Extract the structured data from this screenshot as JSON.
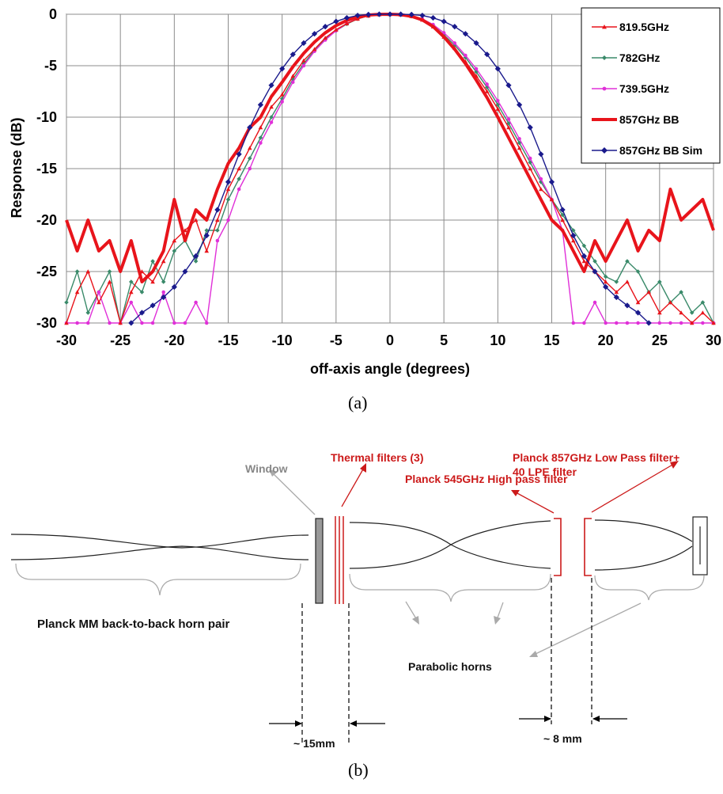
{
  "figure": {
    "caption_a": "(a)",
    "caption_b": "(b)"
  },
  "chart_data": {
    "type": "line",
    "xlabel": "off-axis angle (degrees)",
    "ylabel": "Response (dB)",
    "xlim": [
      -30,
      30
    ],
    "ylim": [
      -30,
      0
    ],
    "x_ticks": [
      -30,
      -25,
      -20,
      -15,
      -10,
      -5,
      0,
      5,
      10,
      15,
      20,
      25,
      30
    ],
    "y_ticks": [
      0,
      -5,
      -10,
      -15,
      -20,
      -25,
      -30
    ],
    "grid": true,
    "legend_position": "top-right",
    "series": [
      {
        "name": "819.5GHz",
        "color": "#e8141b",
        "marker": "triangle",
        "x": [
          -30,
          -29,
          -28,
          -27,
          -26,
          -25,
          -24,
          -23,
          -22,
          -21,
          -20,
          -19,
          -18,
          -17,
          -16,
          -15,
          -14,
          -13,
          -12,
          -11,
          -10,
          -9,
          -8,
          -7,
          -6,
          -5,
          -4,
          -3,
          -2,
          -1,
          0,
          1,
          2,
          3,
          4,
          5,
          6,
          7,
          8,
          9,
          10,
          11,
          12,
          13,
          14,
          15,
          16,
          17,
          18,
          19,
          20,
          21,
          22,
          23,
          24,
          25,
          26,
          27,
          28,
          29,
          30
        ],
        "y": [
          -30,
          -27,
          -25,
          -28,
          -26,
          -30,
          -27,
          -25,
          -26,
          -24,
          -22,
          -21,
          -20,
          -23,
          -20,
          -17,
          -15,
          -13,
          -11,
          -9,
          -7.8,
          -6,
          -4.5,
          -3.4,
          -2.3,
          -1.5,
          -0.9,
          -0.45,
          -0.15,
          -0.03,
          0,
          -0.05,
          -0.2,
          -0.55,
          -1.2,
          -2.2,
          -3.3,
          -4.6,
          -6,
          -7.5,
          -9.2,
          -11,
          -13,
          -15,
          -17,
          -18,
          -20,
          -22,
          -24,
          -25,
          -26,
          -27,
          -26,
          -28,
          -27,
          -29,
          -28,
          -29,
          -30,
          -29,
          -30
        ]
      },
      {
        "name": "782GHz",
        "color": "#3a8a6a",
        "marker": "diamond",
        "x": [
          -30,
          -29,
          -28,
          -27,
          -26,
          -25,
          -24,
          -23,
          -22,
          -21,
          -20,
          -19,
          -18,
          -17,
          -16,
          -15,
          -14,
          -13,
          -12,
          -11,
          -10,
          -9,
          -8,
          -7,
          -6,
          -5,
          -4,
          -3,
          -2,
          -1,
          0,
          1,
          2,
          3,
          4,
          5,
          6,
          7,
          8,
          9,
          10,
          11,
          12,
          13,
          14,
          15,
          16,
          17,
          18,
          19,
          20,
          21,
          22,
          23,
          24,
          25,
          26,
          27,
          28,
          29,
          30
        ],
        "y": [
          -28,
          -25,
          -29,
          -27,
          -25,
          -30,
          -26,
          -27,
          -24,
          -26,
          -23,
          -22,
          -24,
          -21,
          -21,
          -18,
          -16,
          -14,
          -12,
          -10,
          -8.2,
          -6.3,
          -4.8,
          -3.5,
          -2.4,
          -1.6,
          -0.95,
          -0.45,
          -0.15,
          -0.03,
          0,
          -0.04,
          -0.2,
          -0.5,
          -1.1,
          -2,
          -3,
          -4.2,
          -5.6,
          -7.1,
          -8.8,
          -10.6,
          -12.5,
          -14.4,
          -16.3,
          -18,
          -19.5,
          -21,
          -22.5,
          -24,
          -25.5,
          -26,
          -24,
          -25,
          -27,
          -26,
          -28,
          -27,
          -29,
          -28,
          -30
        ]
      },
      {
        "name": "739.5GHz",
        "color": "#e030d8",
        "marker": "circle",
        "x": [
          -30,
          -29,
          -28,
          -27,
          -26,
          -25,
          -24,
          -23,
          -22,
          -21,
          -20,
          -19,
          -18,
          -17,
          -16,
          -15,
          -14,
          -13,
          -12,
          -11,
          -10,
          -9,
          -8,
          -7,
          -6,
          -5,
          -4,
          -3,
          -2,
          -1,
          0,
          1,
          2,
          3,
          4,
          5,
          6,
          7,
          8,
          9,
          10,
          11,
          12,
          13,
          14,
          15,
          16,
          17,
          18,
          19,
          20,
          21,
          22,
          23,
          24,
          25,
          26,
          27,
          28,
          29,
          30
        ],
        "y": [
          -30,
          -30,
          -30,
          -27,
          -30,
          -30,
          -28,
          -30,
          -30,
          -27,
          -30,
          -30,
          -28,
          -30,
          -22,
          -20,
          -17,
          -15,
          -12.5,
          -10.5,
          -8.5,
          -6.6,
          -5,
          -3.6,
          -2.5,
          -1.6,
          -0.9,
          -0.4,
          -0.12,
          -0.02,
          0,
          -0.03,
          -0.15,
          -0.45,
          -1,
          -1.8,
          -2.8,
          -4,
          -5.3,
          -6.8,
          -8.4,
          -10.2,
          -12.1,
          -14,
          -16,
          -18,
          -21,
          -30,
          -30,
          -28,
          -30,
          -30,
          -30,
          -30,
          -30,
          -30,
          -30,
          -30,
          -30,
          -30,
          -30
        ]
      },
      {
        "name": "857GHz BB",
        "color": "#e8141b",
        "marker": "none",
        "thick": true,
        "x": [
          -30,
          -29,
          -28,
          -27,
          -26,
          -25,
          -24,
          -23,
          -22,
          -21,
          -20,
          -19,
          -18,
          -17,
          -16,
          -15,
          -14,
          -13,
          -12,
          -11,
          -10,
          -9,
          -8,
          -7,
          -6,
          -5,
          -4,
          -3,
          -2,
          -1,
          0,
          1,
          2,
          3,
          4,
          5,
          6,
          7,
          8,
          9,
          10,
          11,
          12,
          13,
          14,
          15,
          16,
          17,
          18,
          19,
          20,
          21,
          22,
          23,
          24,
          25,
          26,
          27,
          28,
          29,
          30
        ],
        "y": [
          -20,
          -23,
          -20,
          -23,
          -22,
          -25,
          -22,
          -26,
          -25,
          -23,
          -18,
          -22,
          -19,
          -20,
          -17,
          -14.5,
          -13,
          -11,
          -10,
          -8,
          -6.6,
          -5.1,
          -3.8,
          -2.7,
          -1.8,
          -1.1,
          -0.6,
          -0.25,
          -0.08,
          -0.01,
          0,
          -0.04,
          -0.2,
          -0.55,
          -1.2,
          -2.2,
          -3.4,
          -4.8,
          -6.4,
          -8.1,
          -10,
          -12,
          -14,
          -16,
          -18,
          -20,
          -21,
          -23,
          -25,
          -22,
          -24,
          -22,
          -20,
          -23,
          -21,
          -22,
          -17,
          -20,
          -19,
          -18,
          -21
        ]
      },
      {
        "name": "857GHz BB Sim",
        "color": "#1a1a8c",
        "marker": "diamond",
        "x": [
          -24,
          -23,
          -22,
          -21,
          -20,
          -19,
          -18,
          -17,
          -16,
          -15,
          -14,
          -13,
          -12,
          -11,
          -10,
          -9,
          -8,
          -7,
          -6,
          -5,
          -4,
          -3,
          -2,
          -1,
          0,
          1,
          2,
          3,
          4,
          5,
          6,
          7,
          8,
          9,
          10,
          11,
          12,
          13,
          14,
          15,
          16,
          17,
          18,
          19,
          20,
          21,
          22,
          23,
          24
        ],
        "y": [
          -30,
          -29,
          -28.3,
          -27.5,
          -26.5,
          -25,
          -23.5,
          -21.5,
          -19,
          -16.3,
          -13.6,
          -11,
          -8.8,
          -6.9,
          -5.3,
          -3.9,
          -2.8,
          -1.9,
          -1.2,
          -0.7,
          -0.35,
          -0.12,
          -0.03,
          0,
          0,
          0,
          -0.03,
          -0.12,
          -0.35,
          -0.7,
          -1.2,
          -1.9,
          -2.8,
          -3.9,
          -5.3,
          -6.9,
          -8.8,
          -11,
          -13.6,
          -16.3,
          -19,
          -21.5,
          -23.5,
          -25,
          -26.5,
          -27.5,
          -28.3,
          -29,
          -30
        ]
      }
    ]
  },
  "diagram": {
    "labels": {
      "window": "Window",
      "thermal_filters": "Thermal filters (3)",
      "planck_857_line1": "Planck 857GHz Low Pass filter+",
      "planck_857_line2": "40 LPE filter",
      "planck_545": "Planck 545GHz High pass filter",
      "horn_pair": "Planck MM back-to-back horn pair",
      "parabolic_horns": "Parabolic horns",
      "gap_15": "~ 15mm",
      "gap_8": "~ 8 mm"
    },
    "colors": {
      "filter_text": "#cc1a1a",
      "window_text": "#888888",
      "diagram_line": "#222222"
    }
  }
}
